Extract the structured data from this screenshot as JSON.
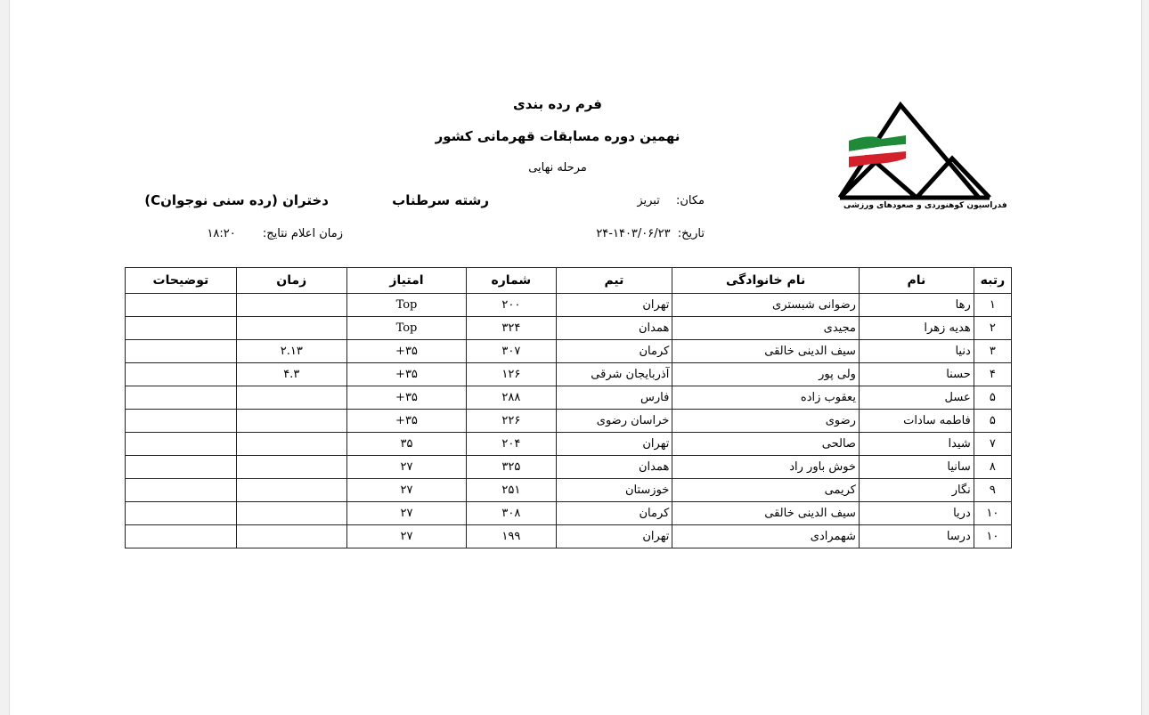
{
  "header": {
    "title": "فرم رده بندی",
    "subtitle": "نهمین دوره مسابقات قهرمانی کشور",
    "stage": "مرحله  نهایی",
    "location_label": "مکان:",
    "location": "تبریز",
    "discipline": "رشته سرطناب",
    "category": "دختران (رده سنی نوجوانC)",
    "date_label": "تاریخ:",
    "date": "۱۴۰۳/۰۶/۲۳-۲۴",
    "results_time_label": "زمان اعلام نتایج:",
    "results_time": "۱۸:۲۰"
  },
  "logo": {
    "text": "فدراسیون کوهنوردی و صعودهای ورزشی",
    "flag_colors": [
      "#1e8a3a",
      "#ffffff",
      "#d3202a"
    ]
  },
  "table": {
    "columns": [
      "رتبه",
      "نام",
      "نام خانوادگی",
      "تیم",
      "شماره",
      "امتیاز",
      "زمان",
      "توضیحات"
    ],
    "rows": [
      [
        "۱",
        "رها",
        "رضوانی شبستری",
        "تهران",
        "۲۰۰",
        "Top",
        "",
        ""
      ],
      [
        "۲",
        "هدیه زهرا",
        "مجیدی",
        "همدان",
        "۳۲۴",
        "Top",
        "",
        ""
      ],
      [
        "۳",
        "دنیا",
        "سیف الدینی خالقی",
        "کرمان",
        "۳۰۷",
        "۳۵+",
        "۲.۱۳",
        ""
      ],
      [
        "۴",
        "حسنا",
        "ولی پور",
        "آذربایجان شرقی",
        "۱۲۶",
        "۳۵+",
        "۴.۳",
        ""
      ],
      [
        "۵",
        "عسل",
        "یعقوب زاده",
        "فارس",
        "۲۸۸",
        "۳۵+",
        "",
        ""
      ],
      [
        "۵",
        "فاطمه سادات",
        "رضوی",
        "خراسان رضوی",
        "۲۲۶",
        "۳۵+",
        "",
        ""
      ],
      [
        "۷",
        "شیدا",
        "صالحی",
        "تهران",
        "۲۰۴",
        "۳۵",
        "",
        ""
      ],
      [
        "۸",
        "سانیا",
        "خوش باور راد",
        "همدان",
        "۳۲۵",
        "۲۷",
        "",
        ""
      ],
      [
        "۹",
        "نگار",
        "کریمی",
        "خوزستان",
        "۲۵۱",
        "۲۷",
        "",
        ""
      ],
      [
        "۱۰",
        "دریا",
        "سیف الدینی خالقی",
        "کرمان",
        "۳۰۸",
        "۲۷",
        "",
        ""
      ],
      [
        "۱۰",
        "درسا",
        "شهمرادی",
        "تهران",
        "۱۹۹",
        "۲۷",
        "",
        ""
      ]
    ]
  }
}
